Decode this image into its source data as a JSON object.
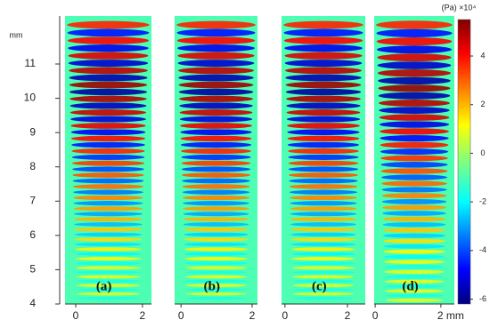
{
  "chart_data": {
    "type": "heatmap",
    "y_label": "mm",
    "ylim": [
      4,
      12.4
    ],
    "yticks": [
      4,
      5,
      6,
      7,
      8,
      9,
      10,
      11
    ],
    "panels": [
      {
        "label": "(a)",
        "xlim": [
          -0.32,
          2.27
        ],
        "xticks": [
          0,
          2
        ]
      },
      {
        "label": "(b)",
        "xlim": [
          -0.18,
          2.15
        ],
        "xticks": [
          0,
          2
        ]
      },
      {
        "label": "(c)",
        "xlim": [
          -0.11,
          2.57
        ],
        "xticks": [
          0,
          2
        ]
      },
      {
        "label": "(d)",
        "xlim": [
          -0.03,
          2.41
        ],
        "xticks": [
          0,
          {
            "value": 2,
            "label": "2 mm"
          }
        ]
      }
    ],
    "colorbar": {
      "label": "(Pa) ×10⁴",
      "lim": [
        -6.2,
        5.5
      ],
      "ticks": [
        -6,
        -4,
        -2,
        0,
        2,
        4
      ]
    }
  }
}
